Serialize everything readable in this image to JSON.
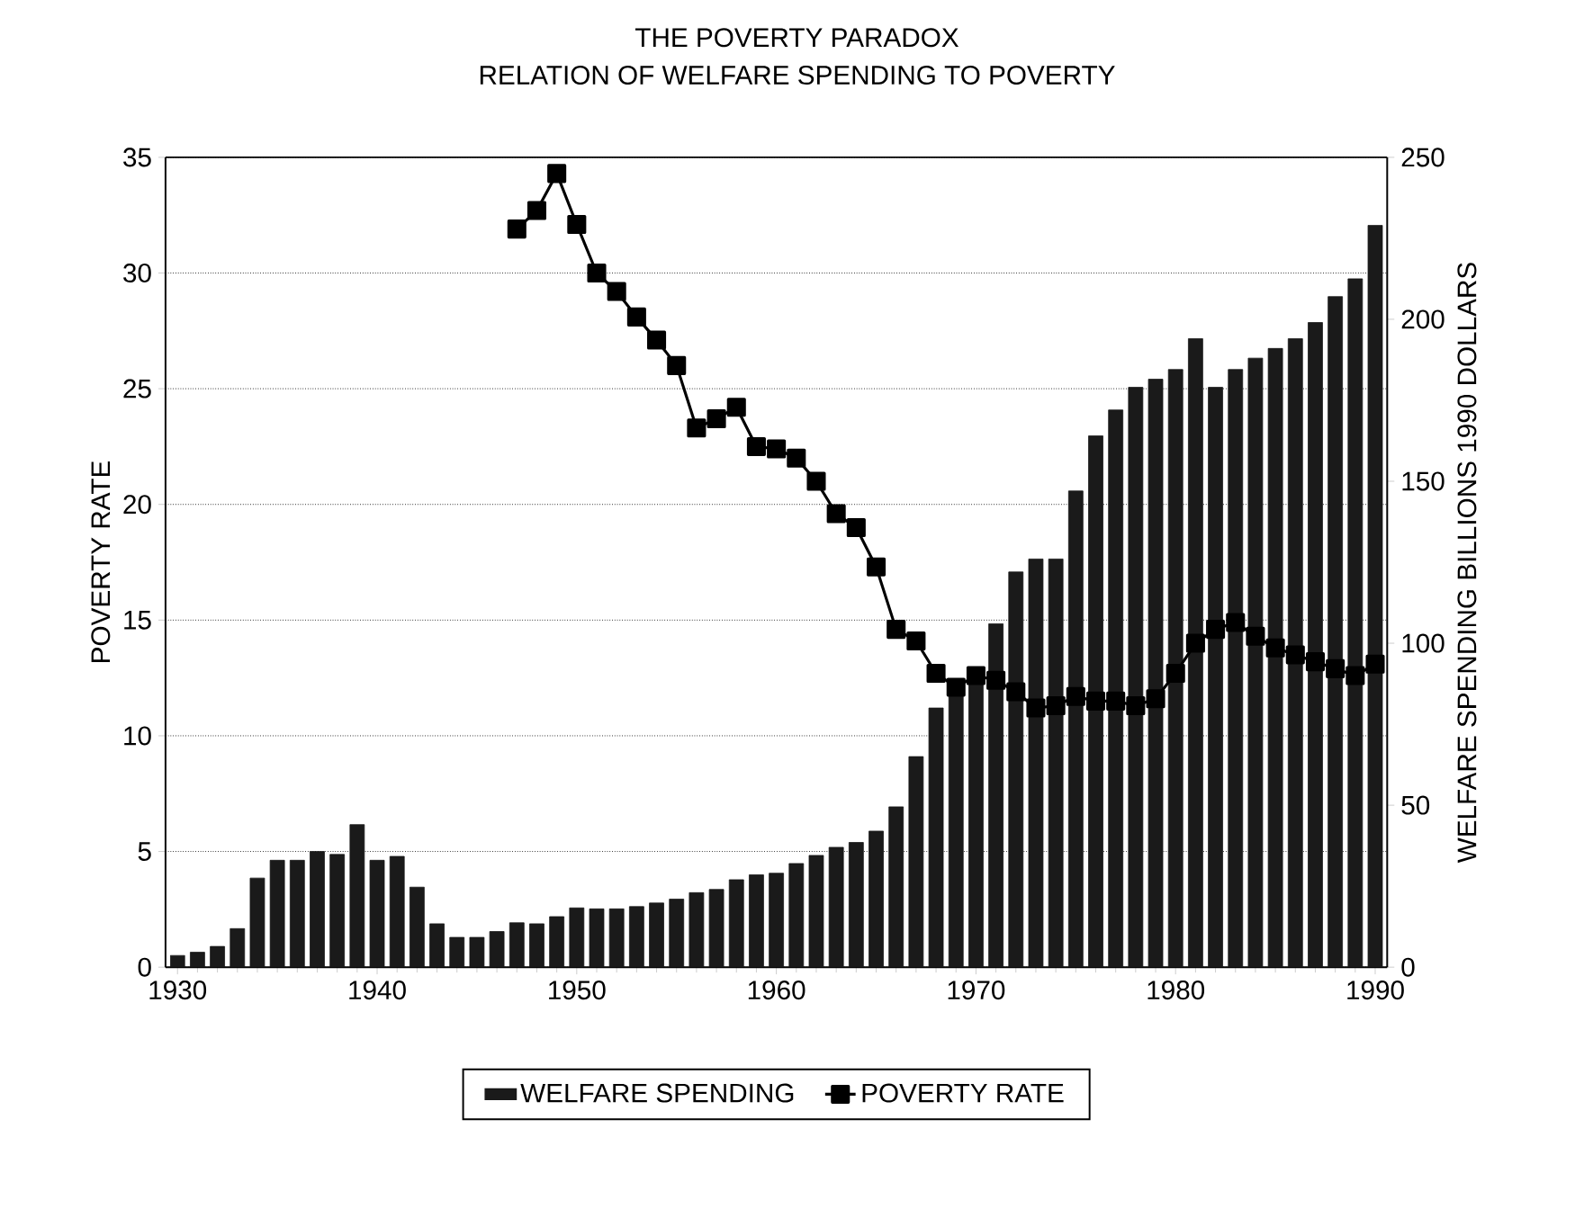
{
  "chart_data": {
    "type": "bar",
    "title": "THE POVERTY PARADOX",
    "subtitle": "RELATION OF WELFARE SPENDING TO POVERTY",
    "ylabel": "POVERTY RATE",
    "y2label": "WELFARE SPENDING BILLIONS 1990 DOLLARS",
    "x": [
      1930,
      1931,
      1932,
      1933,
      1934,
      1935,
      1936,
      1937,
      1938,
      1939,
      1940,
      1941,
      1942,
      1943,
      1944,
      1945,
      1946,
      1947,
      1948,
      1949,
      1950,
      1951,
      1952,
      1953,
      1954,
      1955,
      1956,
      1957,
      1958,
      1959,
      1960,
      1961,
      1962,
      1963,
      1964,
      1965,
      1966,
      1967,
      1968,
      1969,
      1970,
      1971,
      1972,
      1973,
      1974,
      1975,
      1976,
      1977,
      1978,
      1979,
      1980,
      1981,
      1982,
      1983,
      1984,
      1985,
      1986,
      1987,
      1988,
      1989,
      1990
    ],
    "xlim": [
      1929.4,
      1990.6
    ],
    "xticks": [
      1930,
      1940,
      1950,
      1960,
      1970,
      1980,
      1990
    ],
    "ylim": [
      0,
      35
    ],
    "yticks": [
      0,
      5,
      10,
      15,
      20,
      25,
      30,
      35
    ],
    "y2lim": [
      0,
      250
    ],
    "y2ticks": [
      0,
      50,
      100,
      150,
      200,
      250
    ],
    "grid": "y",
    "legend": "bottom",
    "marker": "square",
    "line_style": "solid",
    "series": [
      {
        "name": "WELFARE SPENDING",
        "axis": "y2",
        "color": "#1a1a1a",
        "values": [
          3.6,
          4.6,
          6.4,
          11.9,
          27.5,
          33,
          33,
          35.7,
          34.8,
          44,
          33,
          34.2,
          24.7,
          13.4,
          9.2,
          9.2,
          11,
          13.7,
          13.4,
          15.6,
          18.3,
          18,
          18,
          18.7,
          19.8,
          21,
          23,
          24,
          27,
          28.5,
          29,
          32,
          34.5,
          37,
          38.5,
          42,
          49.5,
          65,
          80,
          84,
          88,
          106,
          122,
          126,
          126,
          147,
          164,
          172,
          179,
          181.5,
          184.5,
          194,
          179,
          184.5,
          188,
          191,
          194,
          199,
          207,
          212.5,
          229
        ]
      },
      {
        "name": "POVERTY RATE",
        "type": "line",
        "axis": "y",
        "color": "#000000",
        "x": [
          1947,
          1948,
          1949,
          1950,
          1951,
          1952,
          1953,
          1954,
          1955,
          1956,
          1957,
          1958,
          1959,
          1960,
          1961,
          1962,
          1963,
          1964,
          1965,
          1966,
          1967,
          1968,
          1969,
          1970,
          1971,
          1972,
          1973,
          1974,
          1975,
          1976,
          1977,
          1978,
          1979,
          1980,
          1981,
          1982,
          1983,
          1984,
          1985,
          1986,
          1987,
          1988,
          1989,
          1990
        ],
        "values": [
          31.9,
          32.7,
          34.3,
          32.1,
          30.0,
          29.2,
          28.1,
          27.1,
          26.0,
          23.3,
          23.7,
          24.2,
          22.5,
          22.4,
          22.0,
          21.0,
          19.6,
          19.0,
          17.3,
          14.6,
          14.1,
          12.7,
          12.1,
          12.6,
          12.4,
          11.9,
          11.2,
          11.3,
          11.7,
          11.5,
          11.5,
          11.3,
          11.6,
          12.7,
          14.0,
          14.6,
          14.9,
          14.3,
          13.8,
          13.5,
          13.2,
          12.9,
          12.6,
          13.1
        ]
      }
    ]
  }
}
